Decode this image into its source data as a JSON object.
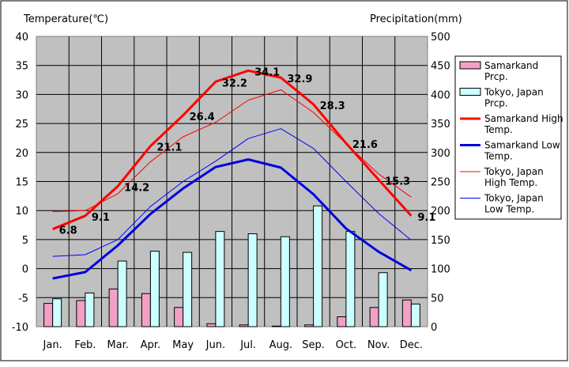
{
  "chart_data": {
    "type": "combo-bar-line",
    "left_axis": {
      "label": "Temperature(℃)",
      "min": -10,
      "max": 40,
      "ticks": [
        40,
        35,
        30,
        25,
        20,
        15,
        10,
        5,
        0,
        -5,
        -10
      ]
    },
    "right_axis": {
      "label": "Precipitation(mm)",
      "min": 0,
      "max": 500,
      "ticks": [
        500,
        450,
        400,
        350,
        300,
        250,
        200,
        150,
        100,
        50,
        0
      ]
    },
    "categories": [
      "Jan.",
      "Feb.",
      "Mar.",
      "Apr.",
      "May",
      "Jun.",
      "Jul.",
      "Aug.",
      "Sep.",
      "Oct.",
      "Nov.",
      "Dec."
    ],
    "grid": true,
    "legend_position": "right",
    "bars": [
      {
        "name": "Samarkand Prcp.",
        "legend_lines": [
          "Samarkand",
          "Prcp."
        ],
        "color": "#f2a0c8",
        "values": [
          40,
          45,
          65,
          57,
          33,
          5,
          3,
          1,
          3,
          17,
          33,
          46
        ]
      },
      {
        "name": "Tokyo, Japan Prcp.",
        "legend_lines": [
          "Tokyo, Japan",
          "Prcp."
        ],
        "color": "#ccffff",
        "values": [
          48,
          58,
          113,
          130,
          128,
          164,
          160,
          155,
          208,
          164,
          93,
          39
        ]
      }
    ],
    "lines": [
      {
        "name": "Samarkand High Temp.",
        "legend_lines": [
          "Samarkand High",
          "Temp."
        ],
        "color": "#ff0000",
        "width": 3,
        "values": [
          6.8,
          9.1,
          14.2,
          21.1,
          26.4,
          32.2,
          34.1,
          32.9,
          28.3,
          21.6,
          15.3,
          9.1
        ]
      },
      {
        "name": "Samarkand Low Temp.",
        "legend_lines": [
          "Samarkand Low",
          "Temp."
        ],
        "color": "#0000dd",
        "width": 3,
        "values": [
          -1.7,
          -0.6,
          4.0,
          9.4,
          13.8,
          17.5,
          18.8,
          17.4,
          12.8,
          6.9,
          2.9,
          -0.3
        ]
      },
      {
        "name": "Tokyo, Japan High Temp.",
        "legend_lines": [
          "Tokyo, Japan",
          "High Temp."
        ],
        "color": "#ff0000",
        "width": 1,
        "values": [
          9.8,
          10.0,
          12.9,
          18.4,
          22.7,
          25.2,
          29.0,
          30.8,
          26.9,
          21.5,
          16.3,
          12.3
        ]
      },
      {
        "name": "Tokyo, Japan Low Temp.",
        "legend_lines": [
          "Tokyo, Japan",
          "Low Temp."
        ],
        "color": "#0000ff",
        "width": 1,
        "values": [
          2.1,
          2.4,
          5.0,
          10.7,
          15.0,
          18.5,
          22.4,
          24.1,
          20.7,
          15.0,
          9.5,
          4.9
        ]
      }
    ],
    "data_labels": {
      "series": "Samarkand High Temp.",
      "labels": [
        "6.8",
        "9.1",
        "14.2",
        "21.1",
        "26.4",
        "32.2",
        "34.1",
        "32.9",
        "28.3",
        "21.6",
        "15.3",
        "9.1"
      ]
    }
  }
}
